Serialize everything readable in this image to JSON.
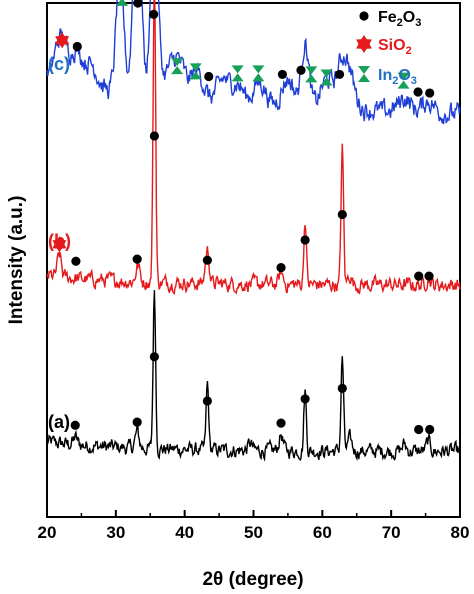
{
  "chart_data": {
    "type": "line",
    "title": "",
    "xlabel": "2θ (degree)",
    "ylabel": "Intensity (a.u.)",
    "xlim": [
      20,
      80
    ],
    "xticks": [
      "20",
      "30",
      "40",
      "50",
      "60",
      "70",
      "80"
    ],
    "y_ticks_shown": false,
    "grid": false,
    "legend_position": "top-right",
    "legend": [
      {
        "marker": "circle",
        "base": "Fe",
        "sub1": "2",
        "mid": "O",
        "sub2": "3",
        "color": "#000000"
      },
      {
        "marker": "star",
        "base": "SiO",
        "sub1": "2",
        "mid": "",
        "sub2": "",
        "color": "#e41a1c"
      },
      {
        "marker": "hourglass",
        "base": "In",
        "sub1": "2",
        "mid": "O",
        "sub2": "3",
        "color": "#2170c4"
      }
    ],
    "series": [
      {
        "label": "(a)",
        "color": "#000000",
        "baseline": 0.08,
        "peaks": [
          [
            24.1,
            0.03
          ],
          [
            33.1,
            0.07
          ],
          [
            35.6,
            0.68
          ],
          [
            43.3,
            0.28
          ],
          [
            49.5,
            0.03
          ],
          [
            54.0,
            0.07
          ],
          [
            57.5,
            0.26
          ],
          [
            62.9,
            0.4
          ],
          [
            64.0,
            0.05
          ],
          [
            71.9,
            0.03
          ],
          [
            75.4,
            0.04
          ]
        ],
        "markers": [
          {
            "type": "circle",
            "x": 24.1,
            "y": 0.07
          },
          {
            "type": "circle",
            "x": 33.1,
            "y": 0.1
          },
          {
            "type": "circle",
            "x": 35.6,
            "y": 0.72
          },
          {
            "type": "circle",
            "x": 43.3,
            "y": 0.3
          },
          {
            "type": "circle",
            "x": 54.0,
            "y": 0.09
          },
          {
            "type": "circle",
            "x": 57.5,
            "y": 0.32
          },
          {
            "type": "circle",
            "x": 62.9,
            "y": 0.42
          },
          {
            "type": "circle",
            "x": 74.0,
            "y": 0.03
          },
          {
            "type": "circle",
            "x": 75.6,
            "y": 0.03
          }
        ]
      },
      {
        "label": "(b)",
        "color": "#e41a1c",
        "baseline": 0.14,
        "peaks": [
          [
            21.8,
            0.09
          ],
          [
            33.2,
            0.07
          ],
          [
            35.6,
            1.3
          ],
          [
            43.3,
            0.14
          ],
          [
            54.0,
            0.05
          ],
          [
            57.5,
            0.28
          ],
          [
            62.9,
            0.58
          ],
          [
            64.0,
            0.04
          ],
          [
            75.4,
            0.03
          ]
        ],
        "markers": [
          {
            "type": "star",
            "x": 21.8,
            "y": 0.34
          },
          {
            "type": "circle",
            "x": 24.2,
            "y": 0.18
          },
          {
            "type": "circle",
            "x": 33.1,
            "y": 0.2
          },
          {
            "type": "circle",
            "x": 35.6,
            "y": 1.36
          },
          {
            "type": "circle",
            "x": 43.3,
            "y": 0.19
          },
          {
            "type": "circle",
            "x": 54.0,
            "y": 0.12
          },
          {
            "type": "circle",
            "x": 57.5,
            "y": 0.38
          },
          {
            "type": "circle",
            "x": 62.9,
            "y": 0.62
          },
          {
            "type": "circle",
            "x": 74.0,
            "y": 0.04
          },
          {
            "type": "circle",
            "x": 75.5,
            "y": 0.04
          }
        ]
      },
      {
        "label": "(c)",
        "color": "#1f3fd6",
        "baseline": 0.12,
        "peaks": [
          [
            22.0,
            0.2
          ],
          [
            24.3,
            0.15
          ],
          [
            26.5,
            0.1
          ],
          [
            30.6,
            0.52
          ],
          [
            33.1,
            0.95
          ],
          [
            35.6,
            0.72
          ],
          [
            37.7,
            0.1
          ],
          [
            39.2,
            0.15
          ],
          [
            41.8,
            0.13
          ],
          [
            45.6,
            0.1
          ],
          [
            47.7,
            0.08
          ],
          [
            50.9,
            0.1
          ],
          [
            55.0,
            0.12
          ],
          [
            57.5,
            0.28
          ],
          [
            60.6,
            0.12
          ],
          [
            62.9,
            0.18
          ],
          [
            64.0,
            0.1
          ],
          [
            71.9,
            0.06
          ],
          [
            75.4,
            0.05
          ]
        ],
        "markers": [
          {
            "type": "star",
            "x": 22.2,
            "y": 0.52
          },
          {
            "type": "circle",
            "x": 24.4,
            "y": 0.46
          },
          {
            "type": "hourglass",
            "x": 30.9,
            "y": 0.93
          },
          {
            "type": "circle",
            "x": 33.2,
            "y": 0.88
          },
          {
            "type": "circle",
            "x": 35.5,
            "y": 0.77
          },
          {
            "type": "hourglass",
            "x": 38.9,
            "y": 0.27
          },
          {
            "type": "hourglass",
            "x": 41.6,
            "y": 0.22
          },
          {
            "type": "circle",
            "x": 43.5,
            "y": 0.17
          },
          {
            "type": "hourglass",
            "x": 47.7,
            "y": 0.2
          },
          {
            "type": "hourglass",
            "x": 50.7,
            "y": 0.2
          },
          {
            "type": "circle",
            "x": 54.2,
            "y": 0.19
          },
          {
            "type": "circle",
            "x": 56.9,
            "y": 0.23
          },
          {
            "type": "hourglass",
            "x": 58.4,
            "y": 0.19
          },
          {
            "type": "hourglass",
            "x": 60.6,
            "y": 0.16
          },
          {
            "type": "circle",
            "x": 62.5,
            "y": 0.19
          },
          {
            "type": "hourglass",
            "x": 71.8,
            "y": 0.13
          },
          {
            "type": "circle",
            "x": 73.9,
            "y": 0.02
          },
          {
            "type": "circle",
            "x": 75.6,
            "y": 0.01
          }
        ]
      }
    ]
  }
}
